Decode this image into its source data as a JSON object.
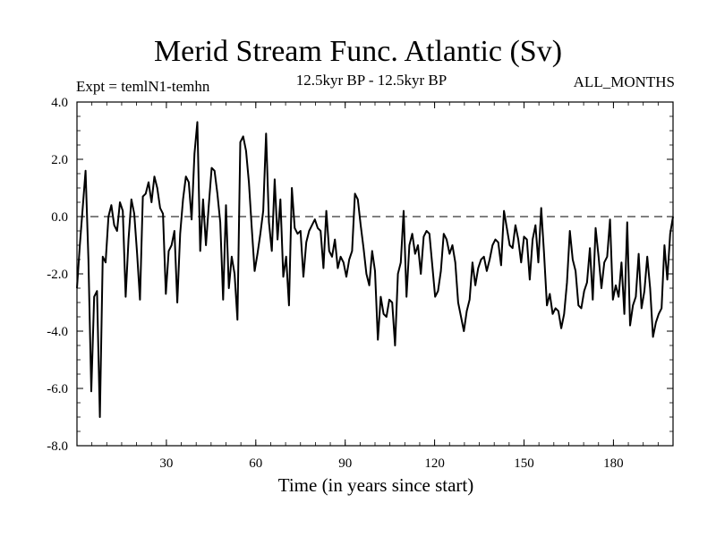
{
  "chart_data": {
    "type": "line",
    "title": "Merid Stream Func. Atlantic (Sv)",
    "subtitle": "12.5kyr BP - 12.5kyr BP",
    "experiment": "Expt = temlN1-temhn",
    "period": "ALL_MONTHS",
    "xlabel": "Time (in years since start)",
    "ylabel": "",
    "xlim": [
      0,
      200
    ],
    "ylim": [
      -8.0,
      4.0
    ],
    "xticks": [
      30,
      60,
      90,
      120,
      150,
      180
    ],
    "yticks": [
      -8.0,
      -6.0,
      -4.0,
      -2.0,
      0.0,
      2.0,
      4.0
    ],
    "ytick_labels": [
      "-8.0",
      "-6.0",
      "-4.0",
      "-2.0",
      "0.0",
      "2.0",
      "4.0"
    ],
    "reference_line": 0.0,
    "series": [
      {
        "name": "Merid Stream Func. Atlantic",
        "values": [
          -2.5,
          -1.0,
          0.3,
          1.6,
          -1.5,
          -6.1,
          -2.8,
          -2.6,
          -7.0,
          -1.4,
          -1.6,
          0.0,
          0.4,
          -0.3,
          -0.5,
          0.5,
          0.2,
          -2.8,
          -0.8,
          0.6,
          0.1,
          -1.3,
          -2.9,
          0.7,
          0.8,
          1.2,
          0.5,
          1.4,
          1.0,
          0.3,
          0.1,
          -2.7,
          -1.2,
          -1.0,
          -0.5,
          -3.0,
          -0.6,
          0.6,
          1.4,
          1.2,
          -0.1,
          2.2,
          3.3,
          -1.2,
          0.6,
          -1.0,
          0.4,
          1.7,
          1.6,
          0.8,
          -0.2,
          -2.9,
          0.4,
          -2.5,
          -1.4,
          -2.0,
          -3.6,
          2.6,
          2.8,
          2.3,
          1.2,
          -0.4,
          -1.9,
          -1.3,
          -0.6,
          0.2,
          2.9,
          -0.2,
          -1.2,
          1.3,
          -0.8,
          0.6,
          -2.1,
          -1.4,
          -3.1,
          1.0,
          -0.4,
          -0.6,
          -0.5,
          -2.1,
          -0.9,
          -0.5,
          -0.3,
          -0.1,
          -0.4,
          -0.5,
          -1.8,
          0.2,
          -1.2,
          -1.4,
          -0.8,
          -1.8,
          -1.4,
          -1.6,
          -2.1,
          -1.5,
          -1.2,
          0.8,
          0.6,
          -0.3,
          -1.1,
          -2.0,
          -2.4,
          -1.2,
          -1.9,
          -4.3,
          -2.8,
          -3.4,
          -3.5,
          -2.9,
          -3.0,
          -4.5,
          -2.0,
          -1.6,
          0.2,
          -2.8,
          -1.0,
          -0.6,
          -1.3,
          -1.0,
          -2.0,
          -0.7,
          -0.5,
          -0.6,
          -1.7,
          -2.8,
          -2.6,
          -1.9,
          -0.6,
          -0.8,
          -1.3,
          -1.0,
          -1.6,
          -3.0,
          -3.5,
          -4.0,
          -3.3,
          -2.9,
          -1.6,
          -2.4,
          -1.8,
          -1.5,
          -1.4,
          -1.9,
          -1.5,
          -1.0,
          -0.8,
          -0.9,
          -1.7,
          0.2,
          -0.4,
          -1.0,
          -1.1,
          -0.3,
          -0.8,
          -1.6,
          -0.7,
          -0.8,
          -2.2,
          -0.8,
          -0.3,
          -1.6,
          0.3,
          -1.3,
          -3.1,
          -2.7,
          -3.4,
          -3.2,
          -3.3,
          -3.9,
          -3.4,
          -2.3,
          -0.5,
          -1.5,
          -1.9,
          -3.1,
          -3.2,
          -2.6,
          -2.3,
          -1.1,
          -2.9,
          -0.4,
          -1.4,
          -2.5,
          -1.6,
          -1.4,
          -0.1,
          -2.9,
          -2.4,
          -2.8,
          -1.6,
          -3.4,
          -0.2,
          -3.8,
          -3.1,
          -2.8,
          -1.3,
          -3.2,
          -2.6,
          -1.4,
          -2.5,
          -4.2,
          -3.7,
          -3.4,
          -3.2,
          -1.0,
          -2.2,
          -0.6,
          0.0
        ]
      }
    ]
  }
}
